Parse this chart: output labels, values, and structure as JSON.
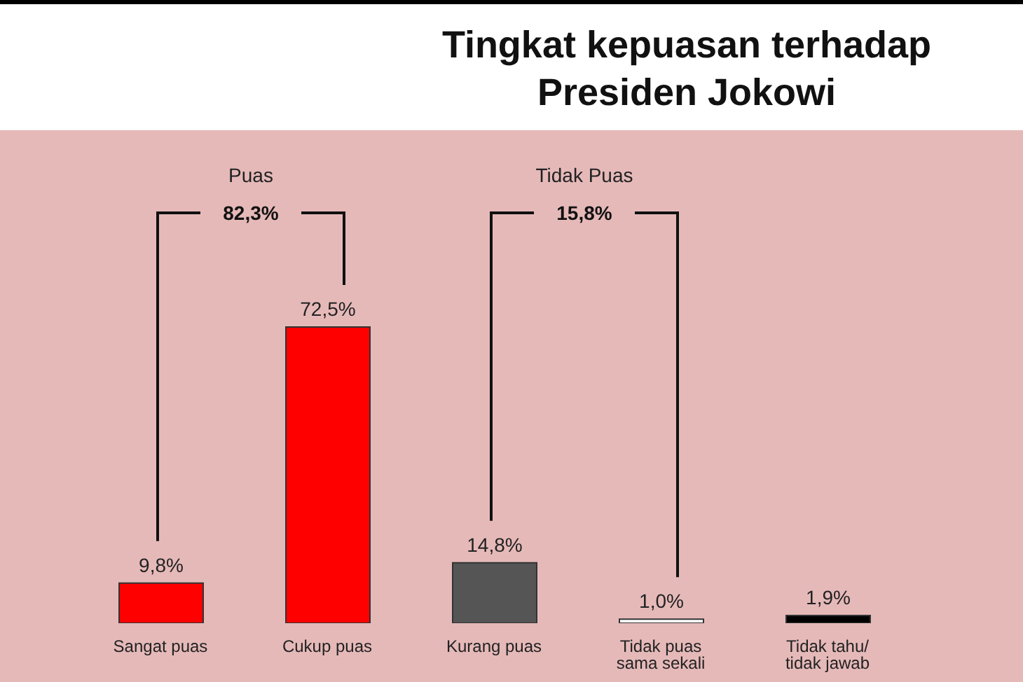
{
  "chart_data": {
    "type": "bar",
    "title": "Tingkat kepuasan terhadap Presiden Jokowi",
    "categories": [
      "Sangat puas",
      "Cukup puas",
      "Kurang puas",
      "Tidak puas sama sekali",
      "Tidak tahu/ tidak jawab"
    ],
    "values": [
      9.8,
      72.5,
      14.8,
      1.0,
      1.9
    ],
    "colors": [
      "#ff0000",
      "#ff0000",
      "#555555",
      "#ffffff",
      "#000000"
    ],
    "value_labels": [
      "9,8%",
      "72,5%",
      "14,8%",
      "1,0%",
      "1,9%"
    ],
    "annotations": [
      "Puas",
      "82,3%",
      "Tidak Puas",
      "15,8%"
    ]
  }
}
